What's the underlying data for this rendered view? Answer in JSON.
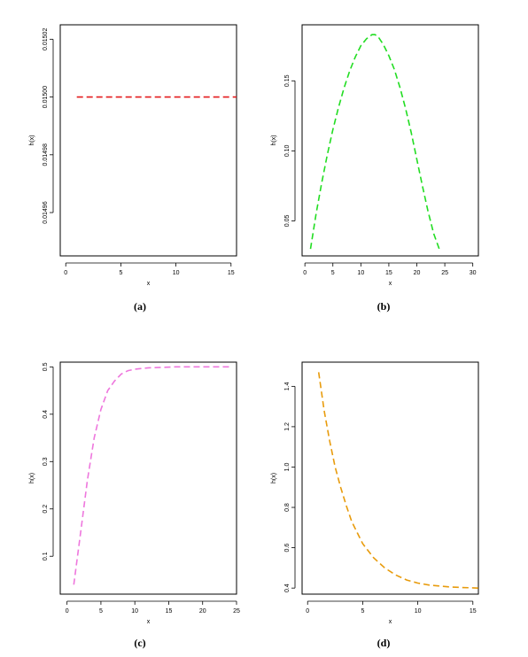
{
  "chart_data": [
    {
      "type": "line",
      "caption": "(a)",
      "xlabel": "x",
      "ylabel": "h(x)",
      "xlim": [
        -0.5,
        15.5
      ],
      "ylim": [
        0.014945,
        0.015025
      ],
      "xticks": [
        "0",
        "5",
        "10",
        "15"
      ],
      "yticks": [
        "0.01496",
        "0.01498",
        "0.01500",
        "0.01502"
      ],
      "color": "#e41a1c",
      "series": [
        {
          "x": [
            1,
            2,
            4,
            6,
            8,
            10,
            12,
            14,
            15.5
          ],
          "y": [
            0.015,
            0.015,
            0.015,
            0.015,
            0.015,
            0.015,
            0.015,
            0.015,
            0.015
          ]
        }
      ]
    },
    {
      "type": "line",
      "caption": "(b)",
      "xlabel": "x",
      "ylabel": "h(x)",
      "xlim": [
        -0.5,
        31
      ],
      "ylim": [
        0.025,
        0.19
      ],
      "xticks": [
        "0",
        "5",
        "10",
        "15",
        "20",
        "25",
        "30"
      ],
      "yticks": [
        "0.05",
        "0.10",
        "0.15"
      ],
      "color": "#22dd22",
      "series": [
        {
          "x": [
            1,
            2,
            3,
            4,
            5,
            6,
            7,
            8,
            9,
            10,
            11,
            12,
            12.5,
            13,
            14,
            15,
            16,
            17,
            18,
            19,
            20,
            21,
            22,
            23,
            24
          ],
          "y": [
            0.03,
            0.055,
            0.077,
            0.097,
            0.115,
            0.131,
            0.145,
            0.157,
            0.167,
            0.175,
            0.18,
            0.183,
            0.183,
            0.182,
            0.176,
            0.168,
            0.158,
            0.145,
            0.13,
            0.113,
            0.094,
            0.075,
            0.057,
            0.041,
            0.03
          ]
        }
      ]
    },
    {
      "type": "line",
      "caption": "(c)",
      "xlabel": "x",
      "ylabel": "h(x)",
      "xlim": [
        -1,
        25
      ],
      "ylim": [
        0.02,
        0.51
      ],
      "xticks": [
        "0",
        "5",
        "10",
        "15",
        "20",
        "25"
      ],
      "yticks": [
        "0.1",
        "0.2",
        "0.3",
        "0.4",
        "0.5"
      ],
      "color": "#ee77dd",
      "series": [
        {
          "x": [
            1,
            2,
            3,
            4,
            5,
            6,
            7,
            8,
            9,
            10,
            12,
            14,
            16,
            18,
            20,
            22,
            24
          ],
          "y": [
            0.04,
            0.15,
            0.26,
            0.35,
            0.41,
            0.45,
            0.47,
            0.485,
            0.492,
            0.495,
            0.498,
            0.499,
            0.5,
            0.5,
            0.5,
            0.5,
            0.5
          ]
        }
      ]
    },
    {
      "type": "line",
      "caption": "(d)",
      "xlabel": "x",
      "ylabel": "h(x)",
      "xlim": [
        -0.5,
        15.5
      ],
      "ylim": [
        0.37,
        1.52
      ],
      "xticks": [
        "0",
        "5",
        "10",
        "15"
      ],
      "yticks": [
        "0.4",
        "0.6",
        "0.8",
        "1.0",
        "1.2",
        "1.4"
      ],
      "color": "#e89b0c",
      "series": [
        {
          "x": [
            1,
            1.5,
            2,
            2.5,
            3,
            3.5,
            4,
            5,
            6,
            7,
            8,
            9,
            10,
            11,
            12,
            13,
            14,
            15,
            15.5
          ],
          "y": [
            1.47,
            1.28,
            1.13,
            1.0,
            0.9,
            0.81,
            0.73,
            0.62,
            0.55,
            0.5,
            0.465,
            0.44,
            0.425,
            0.415,
            0.41,
            0.405,
            0.403,
            0.401,
            0.4
          ]
        }
      ]
    }
  ]
}
